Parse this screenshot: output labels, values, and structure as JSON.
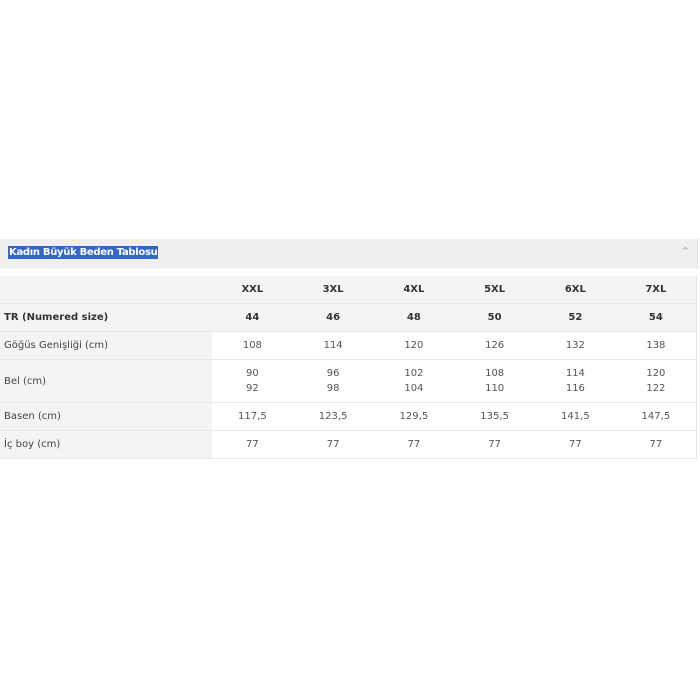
{
  "panel": {
    "title": "Kadın Büyük Beden Tablosu",
    "collapse_icon": "chevron-up-icon"
  },
  "table": {
    "columns": [
      "XXL",
      "3XL",
      "4XL",
      "5XL",
      "6XL",
      "7XL"
    ],
    "rows": [
      {
        "label": "TR (Numered size)",
        "values": [
          "44",
          "46",
          "48",
          "50",
          "52",
          "54"
        ]
      },
      {
        "label": "Göğüs Genişliği (cm)",
        "values": [
          "108",
          "114",
          "120",
          "126",
          "132",
          "138"
        ]
      },
      {
        "label": "Bel (cm)",
        "values": [
          [
            "90",
            "92"
          ],
          [
            "96",
            "98"
          ],
          [
            "102",
            "104"
          ],
          [
            "108",
            "110"
          ],
          [
            "114",
            "116"
          ],
          [
            "120",
            "122"
          ]
        ]
      },
      {
        "label": "Basen (cm)",
        "values": [
          "117,5",
          "123,5",
          "129,5",
          "135,5",
          "141,5",
          "147,5"
        ]
      },
      {
        "label": "İç boy (cm)",
        "values": [
          "77",
          "77",
          "77",
          "77",
          "77",
          "77"
        ]
      }
    ]
  }
}
